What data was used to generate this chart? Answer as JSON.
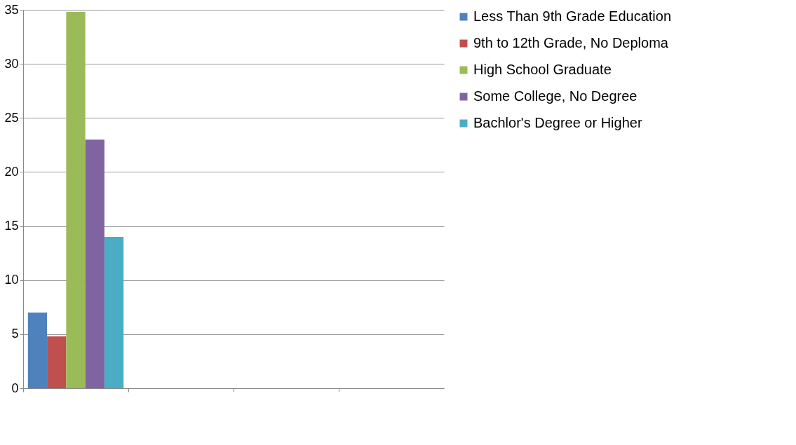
{
  "chart_data": {
    "type": "bar",
    "categories": [
      null,
      null,
      null,
      null
    ],
    "series": [
      {
        "name": "Less Than 9th Grade Education",
        "color": "#4f81bd",
        "values": [
          7,
          null,
          null,
          null
        ]
      },
      {
        "name": "9th to 12th Grade, No Deploma",
        "color": "#c0504d",
        "values": [
          4.8,
          null,
          null,
          null
        ]
      },
      {
        "name": "High School Graduate",
        "color": "#9bbb59",
        "values": [
          34.8,
          null,
          null,
          null
        ]
      },
      {
        "name": "Some College, No Degree",
        "color": "#8064a2",
        "values": [
          23,
          null,
          null,
          null
        ]
      },
      {
        "name": "Bachlor's Degree or Higher",
        "color": "#4bacc6",
        "values": [
          14,
          null,
          null,
          null
        ]
      }
    ],
    "ylim": [
      0,
      35
    ],
    "yticks": [
      0,
      5,
      10,
      15,
      20,
      25,
      30,
      35
    ],
    "grid": "y",
    "legend": "right",
    "tick_labels": "y"
  }
}
